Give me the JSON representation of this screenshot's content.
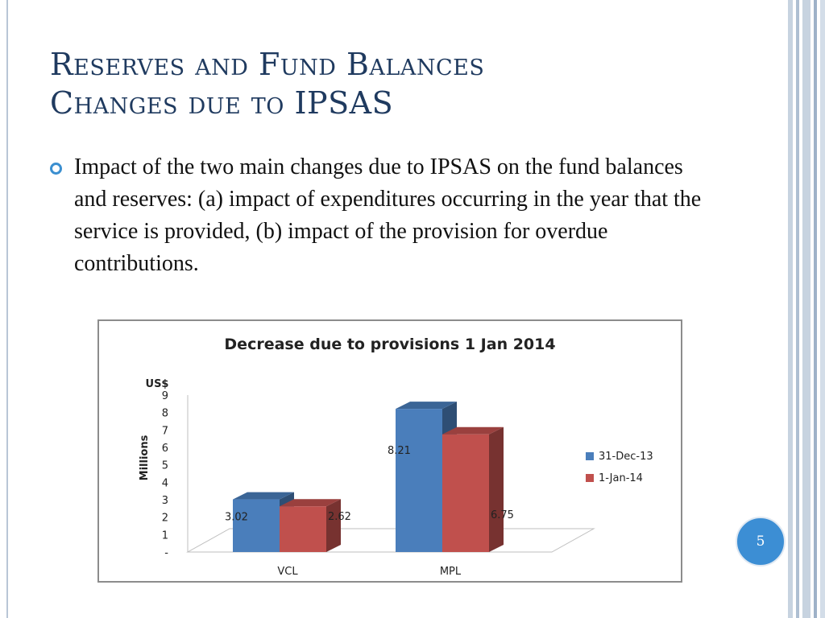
{
  "slide": {
    "title_line1": "Reserves and Fund Balances",
    "title_line2": "Changes due to IPSAS",
    "bullet": "Impact of the two main changes due to IPSAS on the fund balances and reserves: (a) impact of expenditures occurring in the year that the service is provided, (b) impact of the provision for overdue contributions.",
    "page_number": "5",
    "accent_color": "#3c8ed4",
    "title_color": "#1f3a5f"
  },
  "chart_data": {
    "type": "bar",
    "title": "Decrease due to provisions  1 Jan 2014",
    "unit_label": "US$",
    "ylabel": "Millions",
    "xlabel": "",
    "categories": [
      "VCL",
      "MPL"
    ],
    "series": [
      {
        "name": "31-Dec-13",
        "values": [
          3.02,
          8.21
        ],
        "color": "#4a7ebb"
      },
      {
        "name": "1-Jan-14",
        "values": [
          2.62,
          6.75
        ],
        "color": "#c0504d"
      }
    ],
    "ylim": [
      0,
      9
    ],
    "yticks": [
      "-",
      "1",
      "2",
      "3",
      "4",
      "5",
      "6",
      "7",
      "8",
      "9"
    ],
    "legend_position": "right",
    "grid": false,
    "style": "3d-column"
  }
}
